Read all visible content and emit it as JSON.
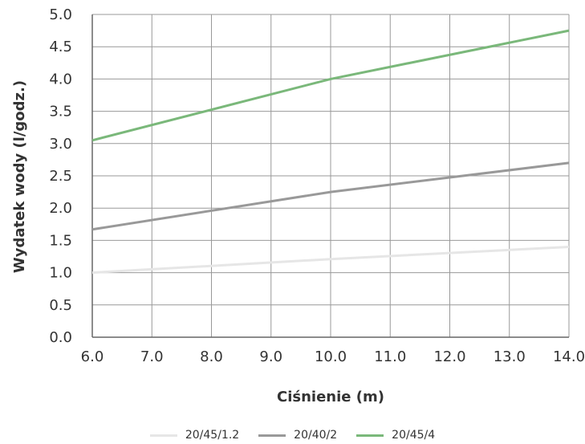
{
  "chart_data": {
    "type": "line",
    "title": "",
    "xlabel": "Ciśnienie (m)",
    "ylabel": "Wydatek wody (l/godz.)",
    "xlim": [
      6.0,
      14.0
    ],
    "ylim": [
      0.0,
      5.0
    ],
    "x_ticks": [
      "6.0",
      "7.0",
      "8.0",
      "9.0",
      "10.0",
      "11.0",
      "12.0",
      "13.0",
      "14.0"
    ],
    "y_ticks": [
      "0.0",
      "0.5",
      "1.0",
      "1.5",
      "2.0",
      "2.5",
      "3.0",
      "3.5",
      "4.0",
      "4.5",
      "5.0"
    ],
    "grid": true,
    "legend_position": "bottom",
    "series": [
      {
        "name": "20/45/1.2",
        "color": "#e6e6e6",
        "x": [
          6.0,
          10.0,
          14.0
        ],
        "y": [
          1.0,
          1.21,
          1.4
        ]
      },
      {
        "name": "20/40/2",
        "color": "#999999",
        "x": [
          6.0,
          10.0,
          14.0
        ],
        "y": [
          1.67,
          2.25,
          2.7
        ]
      },
      {
        "name": "20/45/4",
        "color": "#7ab87a",
        "x": [
          6.0,
          10.0,
          14.0
        ],
        "y": [
          3.05,
          4.0,
          4.75
        ]
      }
    ]
  }
}
